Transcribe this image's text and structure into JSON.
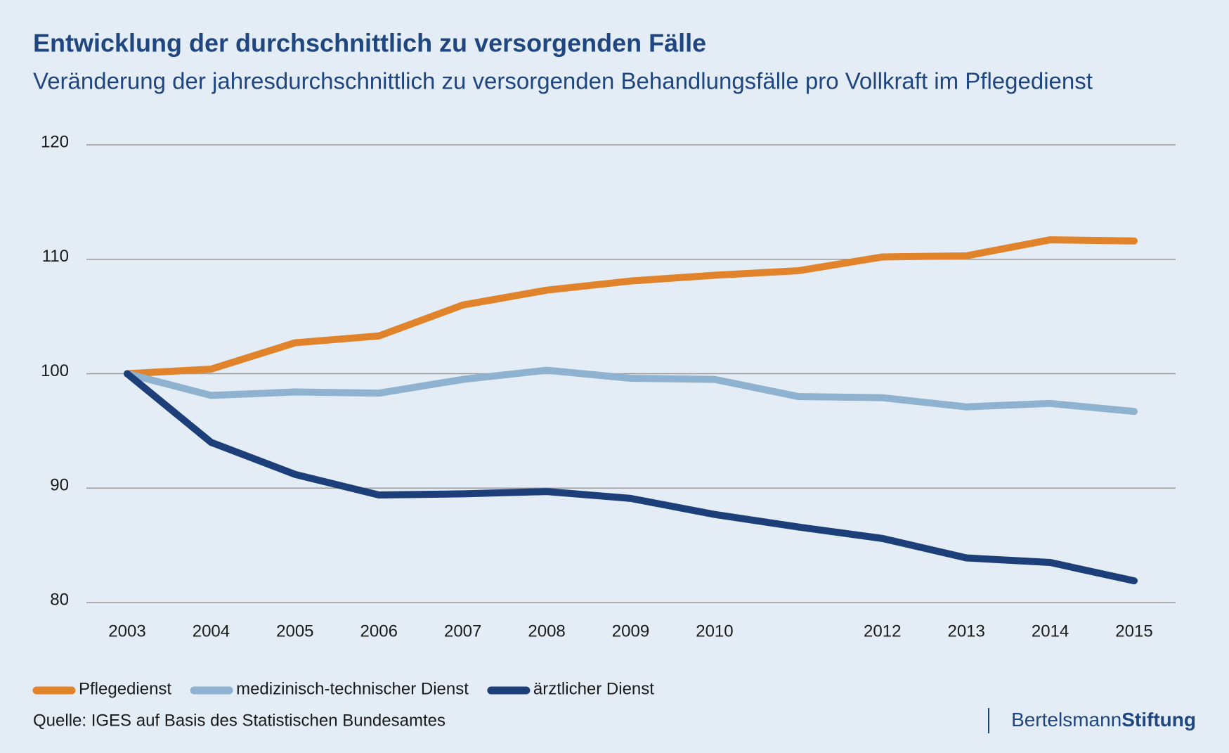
{
  "chart_data": {
    "type": "line",
    "title": "Entwicklung der durchschnittlich zu versorgenden Fälle",
    "subtitle": "Veränderung der jahresdurchschnittlich zu versorgenden Behandlungsfälle pro Vollkraft im Pflegedienst",
    "categories": [
      "2003",
      "2004",
      "2005",
      "2006",
      "2007",
      "2008",
      "2009",
      "2010",
      null,
      "2012",
      "2013",
      "2014",
      "2015"
    ],
    "series": [
      {
        "name": "Pflegedienst",
        "color": "#e0832b",
        "values": [
          100,
          100.4,
          102.7,
          103.3,
          106.0,
          107.3,
          108.1,
          108.6,
          109.0,
          110.2,
          110.3,
          111.7,
          111.6
        ]
      },
      {
        "name": "medizinisch-technischer Dienst",
        "color": "#8fb2d0",
        "values": [
          100,
          98.1,
          98.4,
          98.3,
          99.5,
          100.3,
          99.6,
          99.5,
          98.0,
          97.9,
          97.1,
          97.4,
          96.7
        ]
      },
      {
        "name": "ärztlicher Dienst",
        "color": "#1c3f7a",
        "values": [
          100,
          94.0,
          91.2,
          89.4,
          89.5,
          89.7,
          89.1,
          87.7,
          86.6,
          85.6,
          83.9,
          83.5,
          81.9
        ]
      }
    ],
    "ylim": [
      80,
      120
    ],
    "yticks": [
      80,
      90,
      100,
      110,
      120
    ],
    "grid": true,
    "legend": "bottom-left",
    "source": "Quelle: IGES auf Basis des Statistischen Bundesamtes"
  },
  "brand": {
    "name": "Bertelsmann",
    "suffix": "Stiftung"
  }
}
